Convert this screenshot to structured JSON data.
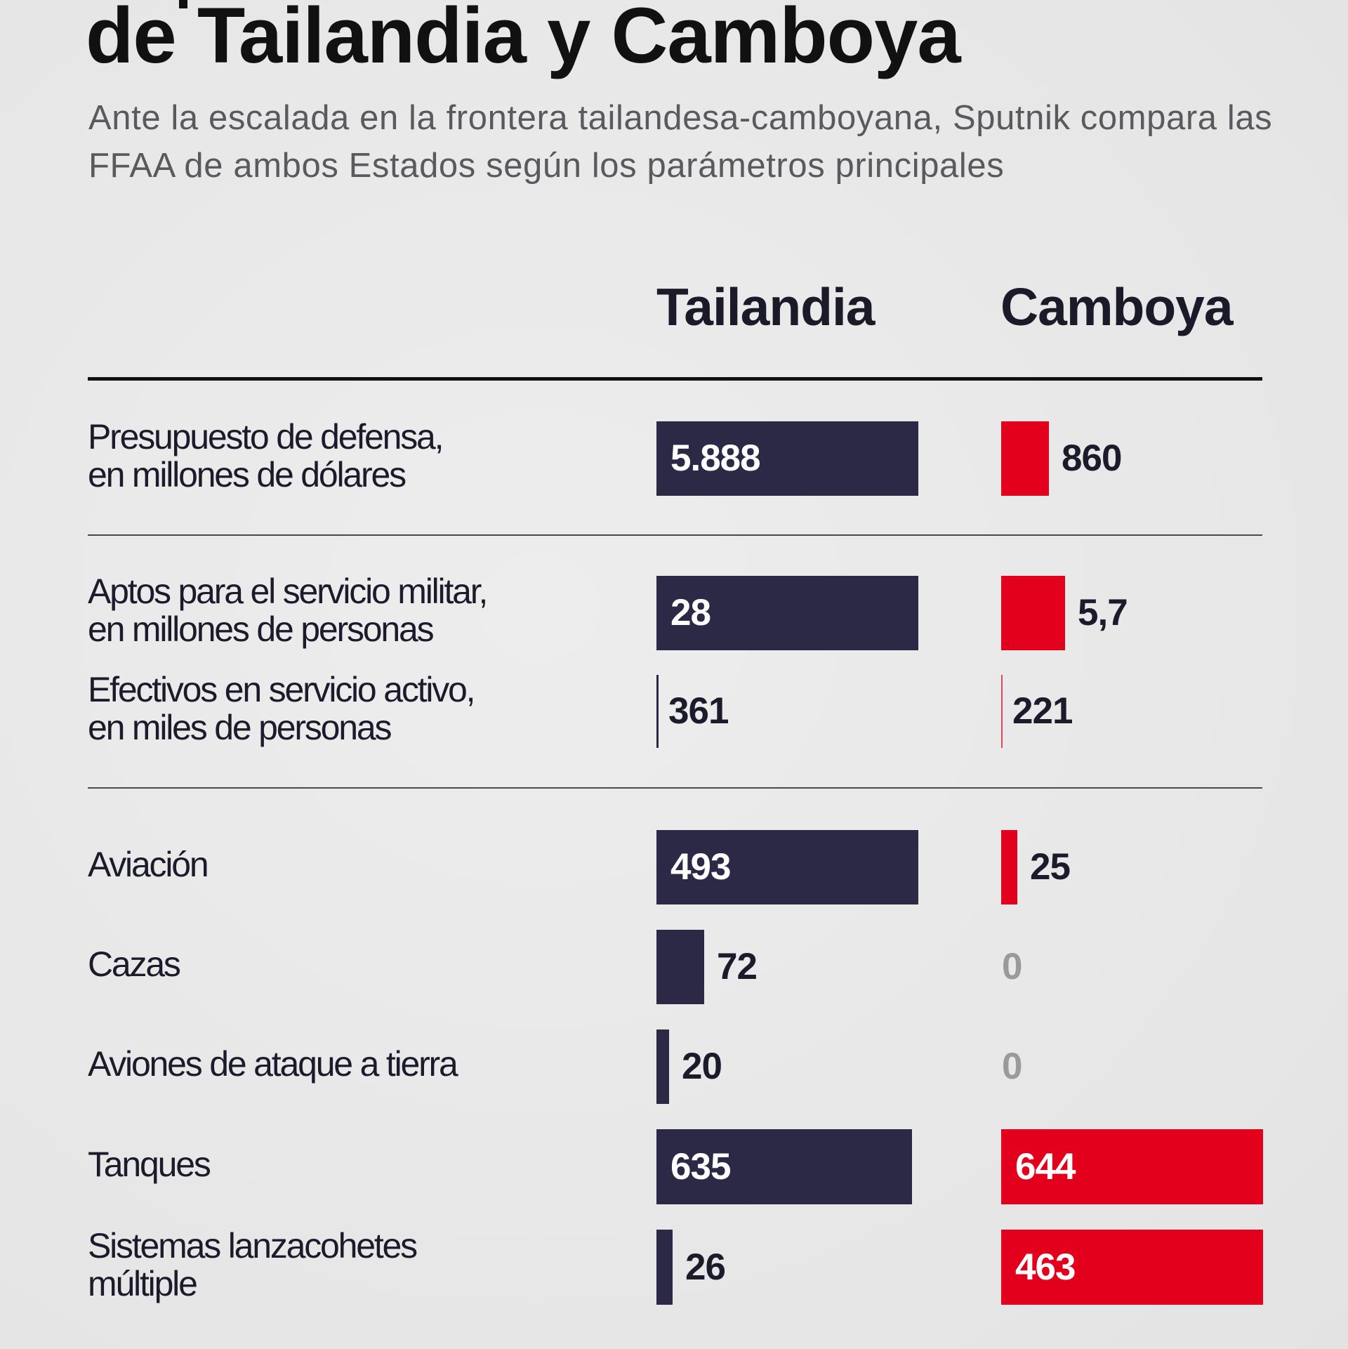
{
  "header": {
    "title": "de Tailandia y Camboya",
    "subtitle": "Ante la escalada en la frontera tailandesa-camboyana, Sputnik compara las FFAA de ambos Estados según los parámetros principales"
  },
  "colors": {
    "tailandia": "#2c2947",
    "camboya": "#e2001d",
    "zero": "#9a9a9a"
  },
  "chart_data": {
    "type": "bar",
    "orientation": "horizontal",
    "title": "de Tailandia y Camboya",
    "subtitle": "Ante la escalada en la frontera tailandesa-camboyana, Sputnik compara las FFAA de ambos Estados según los parámetros principales",
    "series": [
      {
        "name": "Tailandia",
        "color": "#2c2947"
      },
      {
        "name": "Camboya",
        "color": "#e2001d"
      }
    ],
    "rows": [
      {
        "label_lines": [
          "Presupuesto de defensa,",
          "en millones de dólares"
        ],
        "group": 1,
        "tailandia": {
          "value": 5888,
          "label": "5.888"
        },
        "camboya": {
          "value": 860,
          "label": "860"
        }
      },
      {
        "label_lines": [
          "Aptos para el servicio militar,",
          "en millones de personas"
        ],
        "group": 2,
        "tailandia": {
          "value": 28,
          "label": "28"
        },
        "camboya": {
          "value": 5.7,
          "label": "5,7"
        }
      },
      {
        "label_lines": [
          "Efectivos en servicio activo,",
          "en miles de personas"
        ],
        "group": 2,
        "tailandia": {
          "value": 361,
          "label": "361"
        },
        "camboya": {
          "value": 221,
          "label": "221"
        }
      },
      {
        "label_lines": [
          "Aviación"
        ],
        "group": 3,
        "tailandia": {
          "value": 493,
          "label": "493"
        },
        "camboya": {
          "value": 25,
          "label": "25"
        }
      },
      {
        "label_lines": [
          "Cazas"
        ],
        "group": 3,
        "tailandia": {
          "value": 72,
          "label": "72"
        },
        "camboya": {
          "value": 0,
          "label": "0"
        }
      },
      {
        "label_lines": [
          "Aviones de ataque a tierra"
        ],
        "group": 3,
        "tailandia": {
          "value": 20,
          "label": "20"
        },
        "camboya": {
          "value": 0,
          "label": "0"
        }
      },
      {
        "label_lines": [
          "Tanques"
        ],
        "group": 3,
        "tailandia": {
          "value": 635,
          "label": "635"
        },
        "camboya": {
          "value": 644,
          "label": "644"
        }
      },
      {
        "label_lines": [
          "Sistemas lanzacohetes",
          "múltiple"
        ],
        "group": 3,
        "tailandia": {
          "value": 26,
          "label": "26"
        },
        "camboya": {
          "value": 463,
          "label": "463"
        }
      }
    ],
    "bar_fill_fraction": [
      {
        "tailandia": 0.82,
        "camboya": 0.15
      },
      {
        "tailandia": 0.82,
        "camboya": 0.2
      },
      {
        "tailandia": 0.0,
        "camboya": 0.0
      },
      {
        "tailandia": 0.82,
        "camboya": 0.05
      },
      {
        "tailandia": 0.15,
        "camboya": 0.0
      },
      {
        "tailandia": 0.04,
        "camboya": 0.0
      },
      {
        "tailandia": 0.8,
        "camboya": 0.82
      },
      {
        "tailandia": 0.05,
        "camboya": 0.82
      }
    ],
    "grid": false,
    "legend": "column-headers-top"
  }
}
